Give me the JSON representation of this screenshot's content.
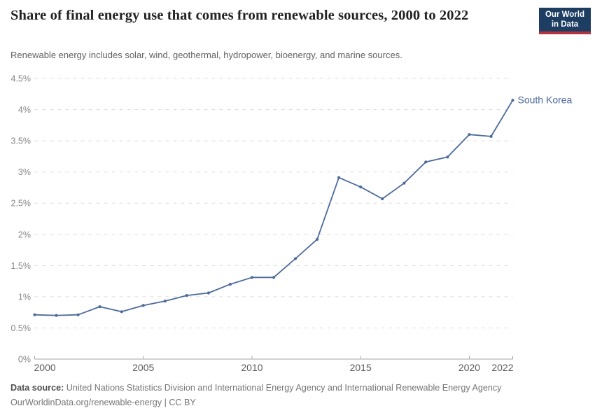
{
  "header": {
    "title": "Share of final energy use that comes from renewable sources, 2000 to 2022",
    "subtitle": "Renewable energy includes solar, wind, geothermal, hydropower, bioenergy, and marine sources.",
    "logo": {
      "line1": "Our World",
      "line2": "in Data",
      "bg_color": "#1d3d63",
      "bar_color": "#b5333f"
    }
  },
  "chart_data": {
    "type": "line",
    "title": "Share of final energy use that comes from renewable sources, 2000 to 2022",
    "xlabel": "",
    "ylabel": "",
    "xlim": [
      2000,
      2022
    ],
    "ylim": [
      0,
      4.5
    ],
    "grid": "horizontal-dashed",
    "legend": "end-of-line-label",
    "series": [
      {
        "name": "South Korea",
        "color": "#4C6A9C",
        "x": [
          2000,
          2001,
          2002,
          2003,
          2004,
          2005,
          2006,
          2007,
          2008,
          2009,
          2010,
          2011,
          2012,
          2013,
          2014,
          2015,
          2016,
          2017,
          2018,
          2019,
          2020,
          2021,
          2022
        ],
        "values": [
          0.71,
          0.7,
          0.71,
          0.84,
          0.76,
          0.86,
          0.93,
          1.02,
          1.06,
          1.2,
          1.31,
          1.31,
          1.61,
          1.92,
          2.91,
          2.76,
          2.57,
          2.82,
          3.16,
          3.24,
          3.6,
          3.57,
          4.15
        ]
      }
    ],
    "x_ticks": [
      {
        "value": 2000,
        "label": "2000",
        "anchor": "start"
      },
      {
        "value": 2005,
        "label": "2005",
        "anchor": "middle"
      },
      {
        "value": 2010,
        "label": "2010",
        "anchor": "middle"
      },
      {
        "value": 2015,
        "label": "2015",
        "anchor": "middle"
      },
      {
        "value": 2020,
        "label": "2020",
        "anchor": "middle"
      },
      {
        "value": 2022,
        "label": "2022",
        "anchor": "end"
      }
    ],
    "y_ticks": [
      {
        "value": 0,
        "label": "0%"
      },
      {
        "value": 0.5,
        "label": "0.5%"
      },
      {
        "value": 1,
        "label": "1%"
      },
      {
        "value": 1.5,
        "label": "1.5%"
      },
      {
        "value": 2,
        "label": "2%"
      },
      {
        "value": 2.5,
        "label": "2.5%"
      },
      {
        "value": 3,
        "label": "3%"
      },
      {
        "value": 3.5,
        "label": "3.5%"
      },
      {
        "value": 4,
        "label": "4%"
      },
      {
        "value": 4.5,
        "label": "4.5%"
      }
    ]
  },
  "colors": {
    "line": "#4C6A9C",
    "grid": "#dcdcdc",
    "axis": "#a6a6a6",
    "y_label": "#878787",
    "x_label": "#5b5b5b",
    "title": "#222222",
    "subtitle": "#616161"
  },
  "footer": {
    "source_label": "Data source:",
    "source_text": "United Nations Statistics Division and International Energy Agency and International Renewable Energy Agency",
    "license_line": "OurWorldinData.org/renewable-energy | CC BY"
  }
}
